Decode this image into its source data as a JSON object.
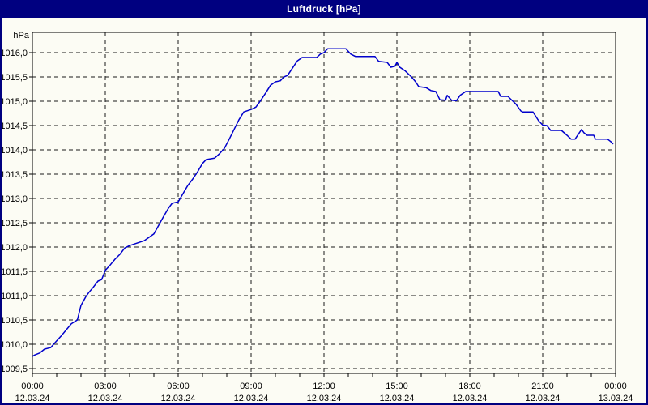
{
  "window": {
    "title": "Luftdruck [hPa]",
    "title_bar_color": "#000080",
    "border_color": "#000080",
    "background_color": "#FCFCF4"
  },
  "chart_data": {
    "type": "line",
    "title": "Luftdruck [hPa]",
    "ylabel": "hPa",
    "xlabel": "",
    "grid": true,
    "legend": "none",
    "line_color": "#0000CC",
    "grid_color": "#1A1A1A",
    "axis_color": "#000000",
    "x_unit": "hours",
    "x_range_hours": [
      0,
      24
    ],
    "ylim": [
      1009.4,
      1016.4
    ],
    "y_tick_step": 0.5,
    "x_minor_tick_hours": 1,
    "x_major_tick_hours": 3,
    "y_ticks": [
      {
        "value": 1016.0,
        "label": "1016,0"
      },
      {
        "value": 1015.5,
        "label": "1015,5"
      },
      {
        "value": 1015.0,
        "label": "1015,0"
      },
      {
        "value": 1014.5,
        "label": "1014,5"
      },
      {
        "value": 1014.0,
        "label": "1014,0"
      },
      {
        "value": 1013.5,
        "label": "1013,5"
      },
      {
        "value": 1013.0,
        "label": "1013,0"
      },
      {
        "value": 1012.5,
        "label": "1012,5"
      },
      {
        "value": 1012.0,
        "label": "1012,0"
      },
      {
        "value": 1011.5,
        "label": "1011,5"
      },
      {
        "value": 1011.0,
        "label": "1011,0"
      },
      {
        "value": 1010.5,
        "label": "1010,5"
      },
      {
        "value": 1010.0,
        "label": "1010,0"
      },
      {
        "value": 1009.5,
        "label": "1009,5"
      }
    ],
    "x_ticks": [
      {
        "hour": 0,
        "time": "00:00",
        "date": "12.03.24"
      },
      {
        "hour": 3,
        "time": "03:00",
        "date": "12.03.24"
      },
      {
        "hour": 6,
        "time": "06:00",
        "date": "12.03.24"
      },
      {
        "hour": 9,
        "time": "09:00",
        "date": "12.03.24"
      },
      {
        "hour": 12,
        "time": "12:00",
        "date": "12.03.24"
      },
      {
        "hour": 15,
        "time": "15:00",
        "date": "12.03.24"
      },
      {
        "hour": 18,
        "time": "18:00",
        "date": "12.03.24"
      },
      {
        "hour": 21,
        "time": "21:00",
        "date": "12.03.24"
      },
      {
        "hour": 24,
        "time": "00:00",
        "date": "13.03.24"
      }
    ],
    "points": [
      [
        0.0,
        1009.75
      ],
      [
        0.1,
        1009.78
      ],
      [
        0.3,
        1009.82
      ],
      [
        0.5,
        1009.9
      ],
      [
        0.75,
        1009.93
      ],
      [
        1.0,
        1010.07
      ],
      [
        1.2,
        1010.18
      ],
      [
        1.4,
        1010.3
      ],
      [
        1.6,
        1010.42
      ],
      [
        1.85,
        1010.5
      ],
      [
        2.0,
        1010.8
      ],
      [
        2.2,
        1010.98
      ],
      [
        2.33,
        1011.07
      ],
      [
        2.5,
        1011.17
      ],
      [
        2.7,
        1011.3
      ],
      [
        2.85,
        1011.33
      ],
      [
        3.0,
        1011.52
      ],
      [
        3.2,
        1011.63
      ],
      [
        3.4,
        1011.75
      ],
      [
        3.6,
        1011.85
      ],
      [
        3.8,
        1011.98
      ],
      [
        4.0,
        1012.03
      ],
      [
        4.3,
        1012.08
      ],
      [
        4.6,
        1012.13
      ],
      [
        5.0,
        1012.27
      ],
      [
        5.2,
        1012.45
      ],
      [
        5.4,
        1012.63
      ],
      [
        5.6,
        1012.8
      ],
      [
        5.75,
        1012.9
      ],
      [
        6.0,
        1012.93
      ],
      [
        6.2,
        1013.1
      ],
      [
        6.4,
        1013.27
      ],
      [
        6.6,
        1013.4
      ],
      [
        6.8,
        1013.55
      ],
      [
        7.0,
        1013.72
      ],
      [
        7.15,
        1013.8
      ],
      [
        7.5,
        1013.83
      ],
      [
        7.7,
        1013.92
      ],
      [
        7.9,
        1014.03
      ],
      [
        8.1,
        1014.22
      ],
      [
        8.3,
        1014.42
      ],
      [
        8.5,
        1014.62
      ],
      [
        8.7,
        1014.78
      ],
      [
        9.0,
        1014.83
      ],
      [
        9.2,
        1014.88
      ],
      [
        9.4,
        1015.02
      ],
      [
        9.6,
        1015.17
      ],
      [
        9.8,
        1015.33
      ],
      [
        10.0,
        1015.4
      ],
      [
        10.2,
        1015.42
      ],
      [
        10.35,
        1015.5
      ],
      [
        10.5,
        1015.53
      ],
      [
        10.7,
        1015.68
      ],
      [
        10.9,
        1015.83
      ],
      [
        11.1,
        1015.9
      ],
      [
        11.7,
        1015.9
      ],
      [
        11.85,
        1015.97
      ],
      [
        12.0,
        1016.0
      ],
      [
        12.15,
        1016.08
      ],
      [
        12.9,
        1016.08
      ],
      [
        13.1,
        1015.97
      ],
      [
        13.3,
        1015.92
      ],
      [
        14.1,
        1015.92
      ],
      [
        14.25,
        1015.82
      ],
      [
        14.6,
        1015.8
      ],
      [
        14.75,
        1015.7
      ],
      [
        14.92,
        1015.72
      ],
      [
        15.0,
        1015.8
      ],
      [
        15.12,
        1015.7
      ],
      [
        15.35,
        1015.62
      ],
      [
        15.6,
        1015.5
      ],
      [
        15.77,
        1015.4
      ],
      [
        15.9,
        1015.3
      ],
      [
        16.2,
        1015.28
      ],
      [
        16.4,
        1015.22
      ],
      [
        16.6,
        1015.2
      ],
      [
        16.77,
        1015.03
      ],
      [
        17.0,
        1015.02
      ],
      [
        17.07,
        1015.12
      ],
      [
        17.25,
        1015.02
      ],
      [
        17.45,
        1015.01
      ],
      [
        17.6,
        1015.12
      ],
      [
        17.83,
        1015.2
      ],
      [
        19.17,
        1015.2
      ],
      [
        19.27,
        1015.1
      ],
      [
        19.57,
        1015.1
      ],
      [
        19.67,
        1015.05
      ],
      [
        19.9,
        1014.94
      ],
      [
        20.1,
        1014.8
      ],
      [
        20.17,
        1014.78
      ],
      [
        20.6,
        1014.78
      ],
      [
        20.83,
        1014.6
      ],
      [
        21.0,
        1014.51
      ],
      [
        21.17,
        1014.5
      ],
      [
        21.3,
        1014.42
      ],
      [
        21.33,
        1014.4
      ],
      [
        21.77,
        1014.4
      ],
      [
        22.0,
        1014.3
      ],
      [
        22.17,
        1014.22
      ],
      [
        22.33,
        1014.22
      ],
      [
        22.6,
        1014.42
      ],
      [
        22.7,
        1014.35
      ],
      [
        22.83,
        1014.3
      ],
      [
        23.1,
        1014.3
      ],
      [
        23.17,
        1014.22
      ],
      [
        23.67,
        1014.22
      ],
      [
        23.8,
        1014.17
      ],
      [
        23.9,
        1014.12
      ]
    ]
  }
}
